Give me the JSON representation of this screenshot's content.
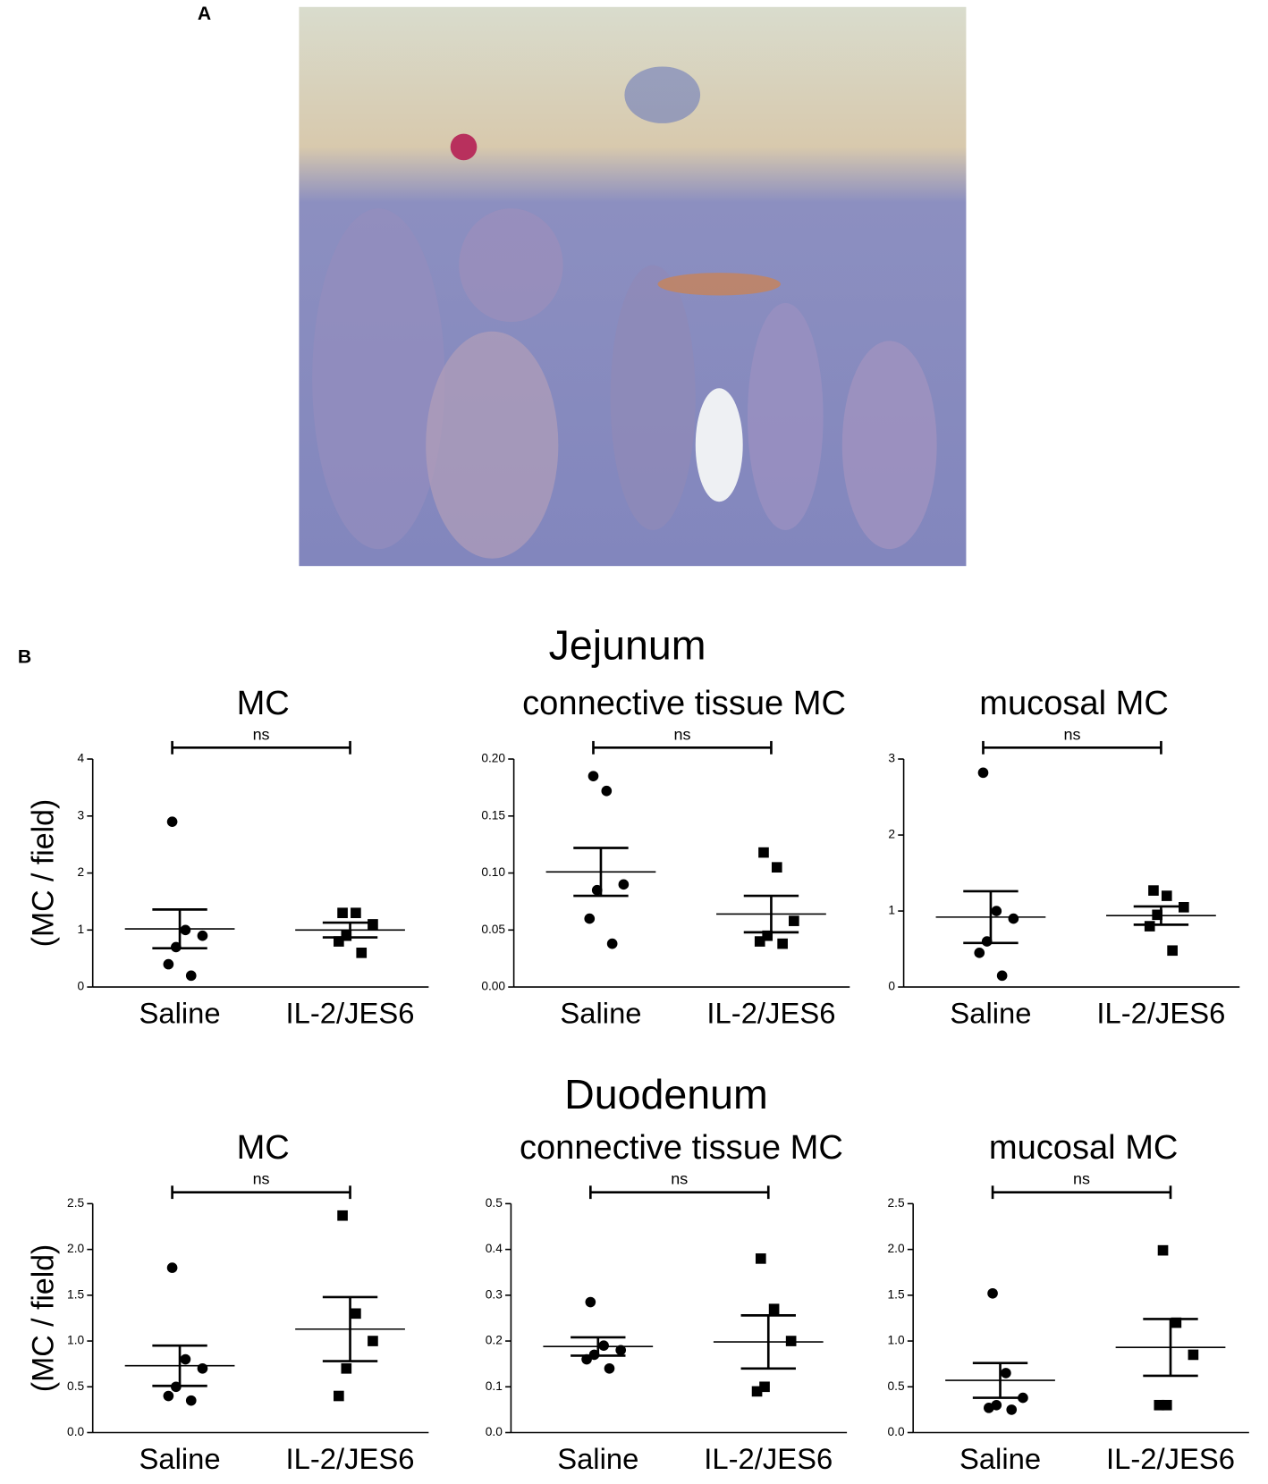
{
  "figure": {
    "panel_a_label": "A",
    "panel_b_label": "B",
    "groups": [
      "Jejunum",
      "Duodenum"
    ]
  },
  "chart_data": [
    {
      "type": "dotplot",
      "title": "MC",
      "ylabel": "(MC / field)",
      "annotation": "ns",
      "categories": [
        "Saline",
        "IL-2/JES6"
      ],
      "markers": [
        "circle",
        "square"
      ],
      "color": "#000000",
      "ylim": [
        0,
        4
      ],
      "yticks": [
        0,
        1,
        2,
        3,
        4
      ],
      "groups": [
        {
          "values": [
            2.9,
            1.0,
            0.9,
            0.7,
            0.4,
            0.2
          ],
          "mean": 1.02,
          "sem": 0.34
        },
        {
          "values": [
            1.3,
            1.3,
            1.1,
            0.9,
            0.8,
            0.6
          ],
          "mean": 1.0,
          "sem": 0.13
        }
      ]
    },
    {
      "type": "dotplot",
      "title": "connective tissue MC",
      "annotation": "ns",
      "categories": [
        "Saline",
        "IL-2/JES6"
      ],
      "markers": [
        "circle",
        "square"
      ],
      "color": "#000000",
      "ylim": [
        0,
        0.2
      ],
      "yticks": [
        {
          "value": 0,
          "label": "0.00"
        },
        {
          "value": 0.05,
          "label": "0.05"
        },
        {
          "value": 0.1,
          "label": "0.10"
        },
        {
          "value": 0.15,
          "label": "0.15"
        },
        {
          "value": 0.2,
          "label": "0.20"
        }
      ],
      "groups": [
        {
          "values": [
            0.185,
            0.172,
            0.09,
            0.085,
            0.06,
            0.038
          ],
          "mean": 0.101,
          "sem": 0.021
        },
        {
          "values": [
            0.118,
            0.105,
            0.058,
            0.045,
            0.04,
            0.038
          ],
          "mean": 0.064,
          "sem": 0.016
        }
      ]
    },
    {
      "type": "dotplot",
      "title": "mucosal MC",
      "annotation": "ns",
      "categories": [
        "Saline",
        "IL-2/JES6"
      ],
      "markers": [
        "circle",
        "square"
      ],
      "color": "#000000",
      "ylim": [
        0,
        3
      ],
      "yticks": [
        0,
        1,
        2,
        3
      ],
      "groups": [
        {
          "values": [
            2.82,
            1.0,
            0.9,
            0.6,
            0.45,
            0.15
          ],
          "mean": 0.92,
          "sem": 0.34
        },
        {
          "values": [
            1.27,
            1.2,
            1.05,
            0.95,
            0.8,
            0.48
          ],
          "mean": 0.94,
          "sem": 0.12
        }
      ]
    },
    {
      "type": "dotplot",
      "title": "MC",
      "ylabel": "(MC / field)",
      "annotation": "ns",
      "categories": [
        "Saline",
        "IL-2/JES6"
      ],
      "markers": [
        "circle",
        "square"
      ],
      "color": "#000000",
      "ylim": [
        0,
        2.5
      ],
      "yticks": [
        {
          "value": 0,
          "label": "0.0"
        },
        0.5,
        {
          "value": 1,
          "label": "1.0"
        },
        1.5,
        {
          "value": 2,
          "label": "2.0"
        },
        2.5
      ],
      "groups": [
        {
          "values": [
            1.8,
            0.8,
            0.7,
            0.5,
            0.4,
            0.35
          ],
          "mean": 0.73,
          "sem": 0.22
        },
        {
          "values": [
            2.37,
            1.3,
            1.0,
            0.7,
            0.4
          ],
          "mean": 1.13,
          "sem": 0.35
        }
      ]
    },
    {
      "type": "dotplot",
      "title": "connective tissue MC",
      "annotation": "ns",
      "categories": [
        "Saline",
        "IL-2/JES6"
      ],
      "markers": [
        "circle",
        "square"
      ],
      "color": "#000000",
      "ylim": [
        0,
        0.5
      ],
      "yticks": [
        {
          "value": 0,
          "label": "0.0"
        },
        0.1,
        0.2,
        0.3,
        0.4,
        0.5
      ],
      "groups": [
        {
          "values": [
            0.285,
            0.19,
            0.18,
            0.17,
            0.16,
            0.14
          ],
          "mean": 0.188,
          "sem": 0.02
        },
        {
          "values": [
            0.38,
            0.27,
            0.2,
            0.1,
            0.09
          ],
          "mean": 0.198,
          "sem": 0.058
        }
      ]
    },
    {
      "type": "dotplot",
      "title": "mucosal MC",
      "annotation": "ns",
      "categories": [
        "Saline",
        "IL-2/JES6"
      ],
      "markers": [
        "circle",
        "square"
      ],
      "color": "#000000",
      "ylim": [
        0,
        2.5
      ],
      "yticks": [
        {
          "value": 0,
          "label": "0.0"
        },
        0.5,
        {
          "value": 1,
          "label": "1.0"
        },
        1.5,
        {
          "value": 2,
          "label": "2.0"
        },
        2.5
      ],
      "groups": [
        {
          "values": [
            1.52,
            0.65,
            0.38,
            0.3,
            0.27,
            0.25
          ],
          "mean": 0.57,
          "sem": 0.19
        },
        {
          "values": [
            1.99,
            1.2,
            0.85,
            0.3,
            0.3
          ],
          "mean": 0.93,
          "sem": 0.31
        }
      ]
    }
  ]
}
